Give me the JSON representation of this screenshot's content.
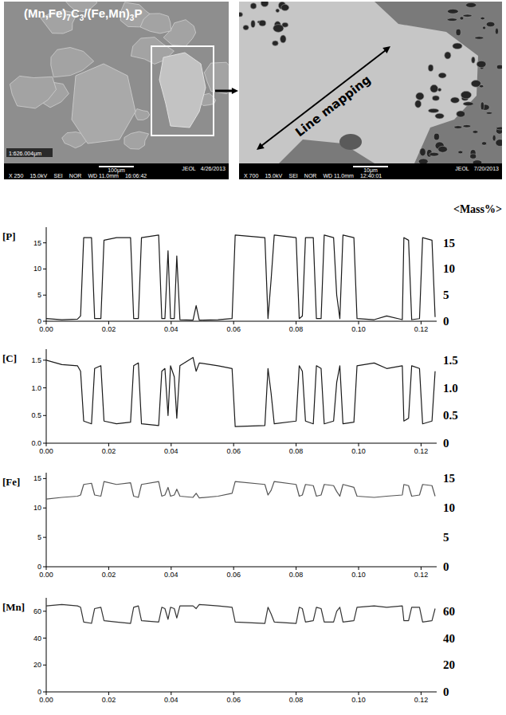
{
  "images": [
    {
      "label": "(Mn,Fe)7C3/(Fe,Mn)3P",
      "measurement": "1:626.004μm",
      "scale_bar": "100μm",
      "brand": "JEOL",
      "date": "4/26/2013",
      "footer": [
        "X 250",
        "15.0kV",
        "SEI",
        "NOR",
        "WD 11.0mm",
        "16:06:42"
      ]
    },
    {
      "label": "Line mapping",
      "scale_bar": "10μm",
      "brand": "JEOL",
      "date": "7/20/2013",
      "footer": [
        "X 700",
        "15.0kV",
        "SEI",
        "NOR",
        "WD 11.0mm",
        "12:40:01"
      ]
    }
  ],
  "chart_data": [
    {
      "type": "line",
      "ylabel": "[P]",
      "y2label": "<Mass%>",
      "color": "#1a1a1a",
      "x": [
        0,
        0.005,
        0.01,
        0.011,
        0.012,
        0.0145,
        0.0155,
        0.0175,
        0.0185,
        0.0225,
        0.027,
        0.028,
        0.0295,
        0.0305,
        0.036,
        0.037,
        0.038,
        0.039,
        0.0398,
        0.041,
        0.0418,
        0.0428,
        0.047,
        0.048,
        0.049,
        0.055,
        0.0595,
        0.0605,
        0.07,
        0.071,
        0.072,
        0.073,
        0.08,
        0.081,
        0.082,
        0.083,
        0.0855,
        0.0865,
        0.088,
        0.089,
        0.092,
        0.093,
        0.094,
        0.095,
        0.0985,
        0.0995,
        0.105,
        0.109,
        0.114,
        0.1145,
        0.116,
        0.117,
        0.1195,
        0.1205,
        0.1235,
        0.1245
      ],
      "values": [
        0.5,
        0.3,
        0.4,
        1,
        16,
        16,
        0.5,
        0.5,
        15.5,
        16,
        16,
        0.5,
        0.5,
        16,
        16.5,
        0.5,
        0.5,
        13.5,
        0.5,
        0.5,
        12.5,
        0.3,
        0.2,
        3,
        0.2,
        0.3,
        0.5,
        16.5,
        16,
        0.5,
        8,
        16.5,
        16,
        0.5,
        1,
        16,
        16,
        0.5,
        0.5,
        16.5,
        16,
        5,
        0.5,
        16.5,
        16,
        0.5,
        0.3,
        1,
        0.3,
        16,
        15.5,
        0.3,
        0.5,
        16,
        15.5,
        0.8
      ],
      "xlim": [
        0,
        0.125
      ],
      "xticks": [
        {
          "value": 0,
          "label": "0.00"
        },
        0.02,
        0.04,
        0.06,
        0.08,
        {
          "value": 0.1,
          "label": "0.10"
        },
        0.12
      ],
      "ylim": [
        0,
        18
      ],
      "yticks": [
        0,
        5,
        10,
        15
      ],
      "y2lim": [
        0,
        18
      ],
      "y2ticks": [
        0,
        5,
        10,
        15
      ]
    },
    {
      "type": "line",
      "ylabel": "[C]",
      "color": "#1a1a1a",
      "x": [
        0,
        0.005,
        0.01,
        0.011,
        0.012,
        0.0145,
        0.0155,
        0.0175,
        0.0185,
        0.0225,
        0.027,
        0.028,
        0.0295,
        0.0305,
        0.036,
        0.037,
        0.038,
        0.039,
        0.0398,
        0.041,
        0.0418,
        0.0428,
        0.047,
        0.048,
        0.049,
        0.055,
        0.0595,
        0.0605,
        0.07,
        0.071,
        0.072,
        0.073,
        0.08,
        0.081,
        0.082,
        0.083,
        0.0855,
        0.0865,
        0.088,
        0.089,
        0.092,
        0.093,
        0.094,
        0.095,
        0.0985,
        0.0995,
        0.105,
        0.109,
        0.114,
        0.1145,
        0.116,
        0.117,
        0.1195,
        0.1205,
        0.1235,
        0.1245
      ],
      "values": [
        1.5,
        1.42,
        1.4,
        1.3,
        0.4,
        0.35,
        1.35,
        1.4,
        0.4,
        0.35,
        0.38,
        1.4,
        1.45,
        0.35,
        0.32,
        1.3,
        1.35,
        0.5,
        1.4,
        1.2,
        0.45,
        1.4,
        1.55,
        1.3,
        1.45,
        1.4,
        1.35,
        0.3,
        0.32,
        1.35,
        0.9,
        0.35,
        0.4,
        1.4,
        1.3,
        0.4,
        0.35,
        1.4,
        1.35,
        0.35,
        0.4,
        1.1,
        1.4,
        0.35,
        0.38,
        1.4,
        1.45,
        1.35,
        1.4,
        0.4,
        0.45,
        1.4,
        1.35,
        0.35,
        0.4,
        1.3
      ],
      "xlim": [
        0,
        0.125
      ],
      "xticks": [
        {
          "value": 0,
          "label": "0.00"
        },
        0.02,
        0.04,
        0.06,
        0.08,
        {
          "value": 0.1,
          "label": "0.10"
        },
        0.12
      ],
      "ylim": [
        0,
        1.7
      ],
      "yticks": [
        {
          "value": 0,
          "label": "0.0"
        },
        0.5,
        {
          "value": 1,
          "label": "1.0"
        },
        1.5
      ],
      "y2lim": [
        0,
        1.7
      ],
      "y2ticks": [
        0,
        0.5,
        {
          "value": 1,
          "label": "1.0"
        },
        1.5
      ]
    },
    {
      "type": "line",
      "ylabel": "[Fe]",
      "color": "#555555",
      "x": [
        0,
        0.005,
        0.01,
        0.011,
        0.012,
        0.0145,
        0.0155,
        0.0175,
        0.0185,
        0.0225,
        0.027,
        0.028,
        0.0295,
        0.0305,
        0.036,
        0.037,
        0.038,
        0.039,
        0.0398,
        0.041,
        0.0418,
        0.0428,
        0.047,
        0.048,
        0.049,
        0.055,
        0.0595,
        0.0605,
        0.07,
        0.071,
        0.072,
        0.073,
        0.08,
        0.081,
        0.082,
        0.083,
        0.0855,
        0.0865,
        0.088,
        0.089,
        0.092,
        0.093,
        0.094,
        0.095,
        0.0985,
        0.0995,
        0.105,
        0.109,
        0.114,
        0.1145,
        0.116,
        0.117,
        0.1195,
        0.1205,
        0.1235,
        0.1245
      ],
      "values": [
        11.5,
        11.8,
        12,
        12.2,
        14,
        14.2,
        12.2,
        12,
        14.5,
        14,
        14.3,
        12,
        11.8,
        14,
        14.5,
        12,
        12.2,
        13.5,
        12,
        12.2,
        13.2,
        12,
        11.8,
        12.5,
        11.7,
        12,
        12.5,
        14.5,
        14,
        12.2,
        13,
        14.5,
        14,
        12,
        12.2,
        14,
        13.8,
        12,
        12.2,
        14,
        13.8,
        12.8,
        12,
        14,
        13.5,
        12,
        11.8,
        12,
        12.2,
        14,
        13.8,
        12,
        12.2,
        14,
        13.8,
        12
      ],
      "xlim": [
        0,
        0.125
      ],
      "xticks": [
        {
          "value": 0,
          "label": "0.00"
        },
        0.02,
        0.04,
        0.06,
        0.08,
        {
          "value": 0.1,
          "label": "0.10"
        },
        0.12
      ],
      "ylim": [
        0,
        16
      ],
      "yticks": [
        0,
        5,
        10,
        15
      ],
      "y2lim": [
        0,
        16
      ],
      "y2ticks": [
        0,
        5,
        10,
        15
      ]
    },
    {
      "type": "line",
      "ylabel": "[Mn]",
      "color": "#333333",
      "x": [
        0,
        0.005,
        0.01,
        0.011,
        0.012,
        0.0145,
        0.0155,
        0.0175,
        0.0185,
        0.0225,
        0.027,
        0.028,
        0.0295,
        0.0305,
        0.036,
        0.037,
        0.038,
        0.039,
        0.0398,
        0.041,
        0.0418,
        0.0428,
        0.047,
        0.048,
        0.049,
        0.055,
        0.0595,
        0.0605,
        0.07,
        0.071,
        0.072,
        0.073,
        0.08,
        0.081,
        0.082,
        0.083,
        0.0855,
        0.0865,
        0.088,
        0.089,
        0.092,
        0.093,
        0.094,
        0.095,
        0.0985,
        0.0995,
        0.105,
        0.109,
        0.114,
        0.1145,
        0.116,
        0.117,
        0.1195,
        0.1205,
        0.1235,
        0.1245
      ],
      "values": [
        64,
        65,
        64,
        63,
        52,
        51,
        62,
        63,
        53,
        52,
        51,
        63,
        64,
        53,
        52,
        63,
        62,
        54,
        63,
        62,
        55,
        64,
        64,
        62,
        65,
        64,
        63,
        52,
        51,
        63,
        58,
        52,
        51,
        63,
        62,
        52,
        53,
        63,
        62,
        52,
        52,
        60,
        63,
        52,
        53,
        63,
        64,
        63,
        64,
        53,
        53,
        63,
        63,
        52,
        53,
        62
      ],
      "xlim": [
        0,
        0.125
      ],
      "xticks": [
        {
          "value": 0,
          "label": "0.00"
        },
        0.02,
        0.04,
        0.06,
        0.08,
        {
          "value": 0.1,
          "label": "0.10"
        },
        0.12
      ],
      "ylim": [
        0,
        70
      ],
      "yticks": [
        0,
        20,
        40,
        60
      ],
      "y2lim": [
        0,
        70
      ],
      "y2ticks": [
        0,
        20,
        40,
        60
      ]
    }
  ]
}
